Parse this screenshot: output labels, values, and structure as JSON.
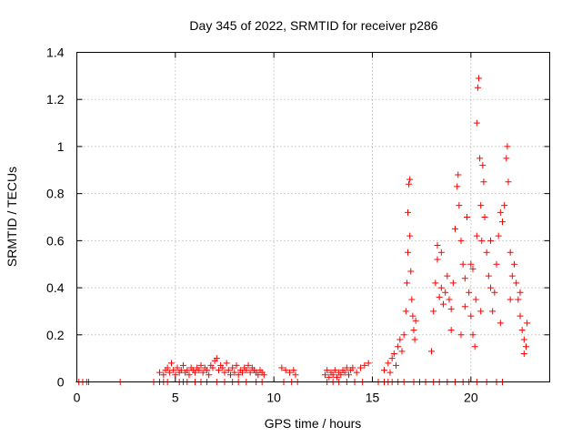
{
  "chart_data": {
    "type": "scatter",
    "title": "Day 345 of 2022, SRMTID for receiver p286",
    "xlabel": "GPS time / hours",
    "ylabel": "SRMTID / TECUs",
    "xlim": [
      0,
      24
    ],
    "ylim": [
      0,
      1.4
    ],
    "x_ticks": [
      0,
      5,
      10,
      15,
      20
    ],
    "x_tick_labels": [
      "0",
      "5",
      "10",
      "15",
      "20"
    ],
    "y_ticks": [
      0,
      0.2,
      0.4,
      0.6,
      0.8,
      1.0,
      1.2,
      1.4
    ],
    "y_tick_labels": [
      "0",
      "0.2",
      "0.4",
      "0.6",
      "0.8",
      "1",
      "1.2",
      "1.4"
    ],
    "grid": true,
    "marker": "+",
    "color": "#ff0000",
    "series": [
      {
        "name": "p286",
        "points": [
          [
            0.1,
            0
          ],
          [
            0.3,
            0
          ],
          [
            0.5,
            0
          ],
          [
            0.6,
            0
          ],
          [
            2.2,
            0
          ],
          [
            3.9,
            0
          ],
          [
            4.2,
            0
          ],
          [
            4.4,
            0
          ],
          [
            4.6,
            0
          ],
          [
            4.2,
            0.04
          ],
          [
            4.4,
            0.03
          ],
          [
            4.5,
            0.05
          ],
          [
            4.6,
            0.06
          ],
          [
            4.7,
            0.04
          ],
          [
            4.8,
            0.08
          ],
          [
            4.9,
            0.05
          ],
          [
            5.0,
            0.03
          ],
          [
            5.1,
            0.06
          ],
          [
            5.2,
            0.04
          ],
          [
            5.3,
            0.05
          ],
          [
            5.4,
            0.07
          ],
          [
            5.5,
            0.04
          ],
          [
            5.6,
            0.05
          ],
          [
            5.7,
            0.03
          ],
          [
            5.8,
            0.06
          ],
          [
            5.9,
            0.05
          ],
          [
            6.0,
            0.04
          ],
          [
            6.1,
            0.06
          ],
          [
            6.2,
            0.05
          ],
          [
            6.3,
            0.07
          ],
          [
            6.4,
            0.04
          ],
          [
            6.5,
            0.06
          ],
          [
            6.6,
            0.05
          ],
          [
            6.7,
            0.03
          ],
          [
            6.8,
            0.07
          ],
          [
            6.9,
            0.06
          ],
          [
            7.0,
            0.09
          ],
          [
            7.1,
            0.1
          ],
          [
            7.2,
            0.05
          ],
          [
            7.3,
            0.07
          ],
          [
            7.4,
            0.06
          ],
          [
            7.5,
            0.04
          ],
          [
            7.6,
            0.08
          ],
          [
            7.7,
            0.05
          ],
          [
            7.8,
            0.03
          ],
          [
            7.9,
            0.06
          ],
          [
            8.0,
            0.04
          ],
          [
            8.1,
            0.07
          ],
          [
            8.2,
            0.03
          ],
          [
            8.3,
            0.05
          ],
          [
            8.4,
            0.04
          ],
          [
            8.5,
            0.06
          ],
          [
            8.6,
            0.05
          ],
          [
            8.7,
            0.07
          ],
          [
            8.8,
            0.04
          ],
          [
            8.9,
            0.06
          ],
          [
            9.0,
            0.05
          ],
          [
            9.1,
            0.04
          ],
          [
            9.2,
            0.03
          ],
          [
            9.3,
            0.05
          ],
          [
            9.4,
            0.04
          ],
          [
            9.5,
            0.03
          ],
          [
            5.2,
            0
          ],
          [
            5.4,
            0
          ],
          [
            5.6,
            0
          ],
          [
            6.0,
            0
          ],
          [
            6.3,
            0
          ],
          [
            6.6,
            0
          ],
          [
            7.1,
            0
          ],
          [
            7.5,
            0
          ],
          [
            7.9,
            0
          ],
          [
            8.2,
            0
          ],
          [
            8.6,
            0
          ],
          [
            9.1,
            0
          ],
          [
            9.4,
            0
          ],
          [
            10.4,
            0.06
          ],
          [
            10.6,
            0.05
          ],
          [
            10.8,
            0.04
          ],
          [
            11.0,
            0.05
          ],
          [
            11.1,
            0.03
          ],
          [
            10.5,
            0
          ],
          [
            10.9,
            0
          ],
          [
            11.2,
            0
          ],
          [
            12.6,
            0.03
          ],
          [
            12.7,
            0.05
          ],
          [
            12.8,
            0.02
          ],
          [
            12.9,
            0.04
          ],
          [
            13.0,
            0.03
          ],
          [
            13.1,
            0.05
          ],
          [
            13.2,
            0.02
          ],
          [
            13.3,
            0.04
          ],
          [
            13.4,
            0.03
          ],
          [
            13.5,
            0.05
          ],
          [
            13.6,
            0.04
          ],
          [
            13.7,
            0.06
          ],
          [
            13.8,
            0.03
          ],
          [
            13.9,
            0.05
          ],
          [
            14.0,
            0.06
          ],
          [
            14.2,
            0.04
          ],
          [
            14.4,
            0.06
          ],
          [
            14.6,
            0.07
          ],
          [
            14.8,
            0.08
          ],
          [
            12.7,
            0
          ],
          [
            13.0,
            0
          ],
          [
            13.3,
            0
          ],
          [
            13.7,
            0
          ],
          [
            14.1,
            0
          ],
          [
            14.5,
            0
          ],
          [
            15.6,
            0.05
          ],
          [
            15.8,
            0.08
          ],
          [
            15.9,
            0.04
          ],
          [
            16.0,
            0.1
          ],
          [
            16.1,
            0.12
          ],
          [
            16.2,
            0.07
          ],
          [
            16.3,
            0.15
          ],
          [
            16.4,
            0.18
          ],
          [
            16.5,
            0.13
          ],
          [
            16.6,
            0.2
          ],
          [
            16.7,
            0.3
          ],
          [
            16.75,
            0.42
          ],
          [
            16.8,
            0.55
          ],
          [
            16.8,
            0.72
          ],
          [
            16.85,
            0.84
          ],
          [
            16.9,
            0.86
          ],
          [
            16.9,
            0.62
          ],
          [
            16.95,
            0.47
          ],
          [
            17.0,
            0.35
          ],
          [
            17.05,
            0.28
          ],
          [
            17.1,
            0.22
          ],
          [
            17.15,
            0.18
          ],
          [
            17.2,
            0.26
          ],
          [
            15.3,
            0
          ],
          [
            15.6,
            0
          ],
          [
            15.8,
            0
          ],
          [
            16.0,
            0
          ],
          [
            16.3,
            0
          ],
          [
            16.6,
            0
          ],
          [
            17.1,
            0
          ],
          [
            17.4,
            0
          ],
          [
            17.7,
            0
          ],
          [
            18.1,
            0
          ],
          [
            18.4,
            0
          ],
          [
            18.8,
            0
          ],
          [
            19.2,
            0
          ],
          [
            19.6,
            0
          ],
          [
            19.9,
            0
          ],
          [
            20.3,
            0
          ],
          [
            20.8,
            0
          ],
          [
            21.3,
            0
          ],
          [
            21.6,
            0
          ],
          [
            18.0,
            0.13
          ],
          [
            18.1,
            0.3
          ],
          [
            18.2,
            0.42
          ],
          [
            18.3,
            0.58
          ],
          [
            18.3,
            0.52
          ],
          [
            18.4,
            0.36
          ],
          [
            18.5,
            0.4
          ],
          [
            18.6,
            0.33
          ],
          [
            18.7,
            0.38
          ],
          [
            18.8,
            0.45
          ],
          [
            18.9,
            0.35
          ],
          [
            19.0,
            0.31
          ],
          [
            19.1,
            0.42
          ],
          [
            19.2,
            0.65
          ],
          [
            19.3,
            0.83
          ],
          [
            19.35,
            0.88
          ],
          [
            19.4,
            0.75
          ],
          [
            19.5,
            0.6
          ],
          [
            19.6,
            0.5
          ],
          [
            19.7,
            0.44
          ],
          [
            19.8,
            0.7
          ],
          [
            19.9,
            0.38
          ],
          [
            20.0,
            0.28
          ],
          [
            20.1,
            0.2
          ],
          [
            20.2,
            0.15
          ],
          [
            20.25,
            0.35
          ],
          [
            20.3,
            0.62
          ],
          [
            20.3,
            1.1
          ],
          [
            20.35,
            1.25
          ],
          [
            20.4,
            1.29
          ],
          [
            20.45,
            0.95
          ],
          [
            20.5,
            0.75
          ],
          [
            20.55,
            0.6
          ],
          [
            20.6,
            0.92
          ],
          [
            20.65,
            0.85
          ],
          [
            20.7,
            0.7
          ],
          [
            20.8,
            0.55
          ],
          [
            20.9,
            0.45
          ],
          [
            21.0,
            0.4
          ],
          [
            21.1,
            0.3
          ],
          [
            21.2,
            0.38
          ],
          [
            21.3,
            0.5
          ],
          [
            21.4,
            0.62
          ],
          [
            21.5,
            0.72
          ],
          [
            21.6,
            0.68
          ],
          [
            21.7,
            0.75
          ],
          [
            21.8,
            0.95
          ],
          [
            21.85,
            1.0
          ],
          [
            21.9,
            0.85
          ],
          [
            22.0,
            0.55
          ],
          [
            22.1,
            0.45
          ],
          [
            22.2,
            0.5
          ],
          [
            22.3,
            0.42
          ],
          [
            22.4,
            0.35
          ],
          [
            22.5,
            0.28
          ],
          [
            22.6,
            0.22
          ],
          [
            22.7,
            0.18
          ],
          [
            22.8,
            0.15
          ],
          [
            22.85,
            0.25
          ],
          [
            18.5,
            0.55
          ],
          [
            19.0,
            0.22
          ],
          [
            19.7,
            0.32
          ],
          [
            20.0,
            0.5
          ],
          [
            20.5,
            0.3
          ],
          [
            21.0,
            0.6
          ],
          [
            21.5,
            0.25
          ],
          [
            22.0,
            0.35
          ],
          [
            22.5,
            0.38
          ],
          [
            22.7,
            0.12
          ],
          [
            19.5,
            0.2
          ],
          [
            20.1,
            0.48
          ]
        ]
      }
    ]
  }
}
